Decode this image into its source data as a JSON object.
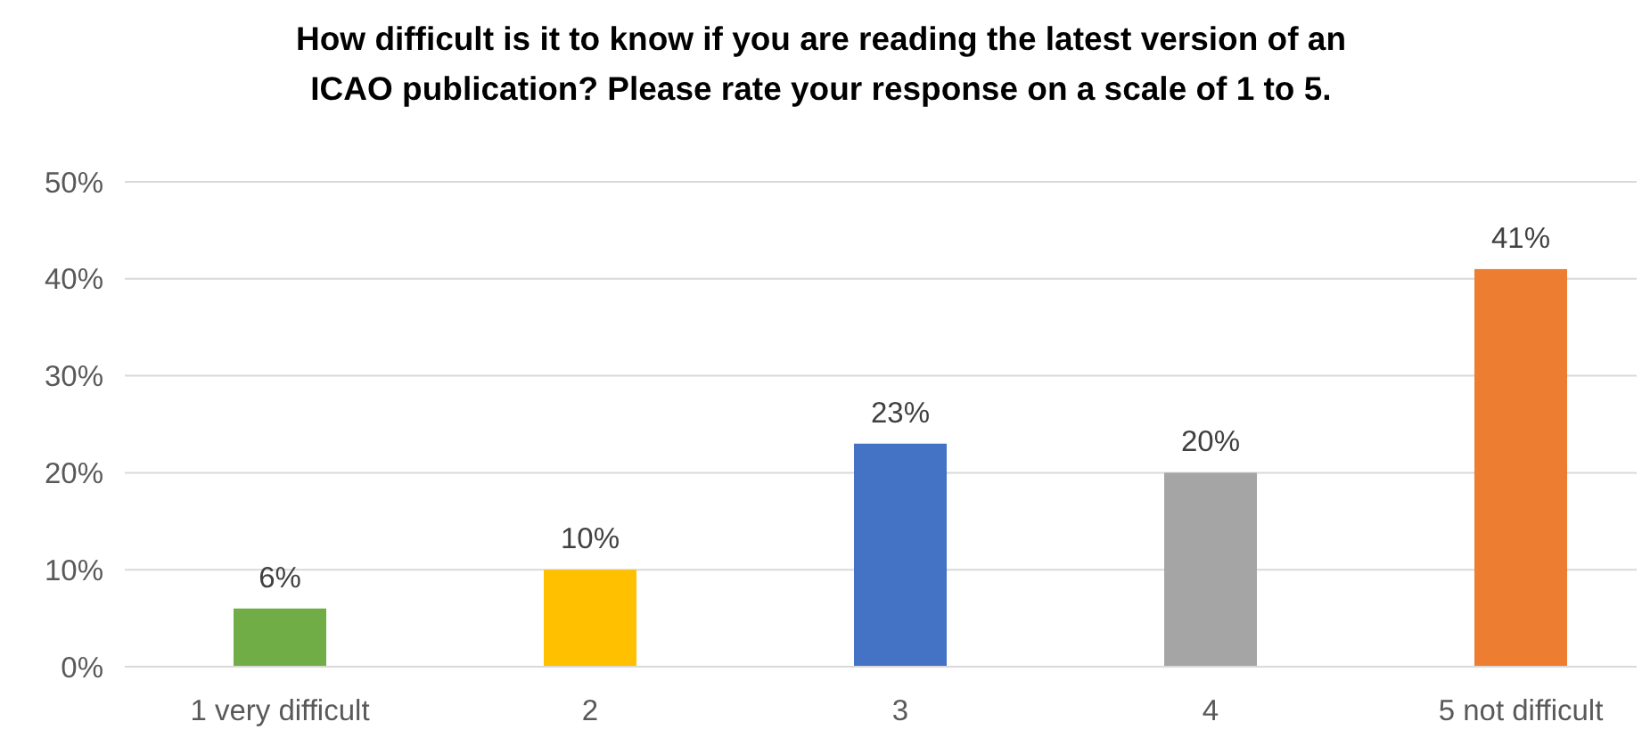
{
  "chart_data": {
    "type": "bar",
    "title": "How difficult is it to know if you are reading the latest version of an\nICAO publication? Please rate your response on a scale of 1 to 5.",
    "categories": [
      "1 very difficult",
      "2",
      "3",
      "4",
      "5 not difficult"
    ],
    "values": [
      6,
      10,
      23,
      20,
      41
    ],
    "colors": [
      "#70ad47",
      "#ffc000",
      "#4472c4",
      "#a5a5a5",
      "#ed7d31"
    ],
    "ylim": [
      0,
      50
    ],
    "yticks": [
      {
        "value": 0,
        "label": "0%"
      },
      {
        "value": 10,
        "label": "10%"
      },
      {
        "value": 20,
        "label": "20%"
      },
      {
        "value": 30,
        "label": "30%"
      },
      {
        "value": 40,
        "label": "40%"
      },
      {
        "value": 50,
        "label": "50%"
      }
    ],
    "value_labels": [
      "6%",
      "10%",
      "23%",
      "20%",
      "41%"
    ],
    "grid": "y"
  }
}
